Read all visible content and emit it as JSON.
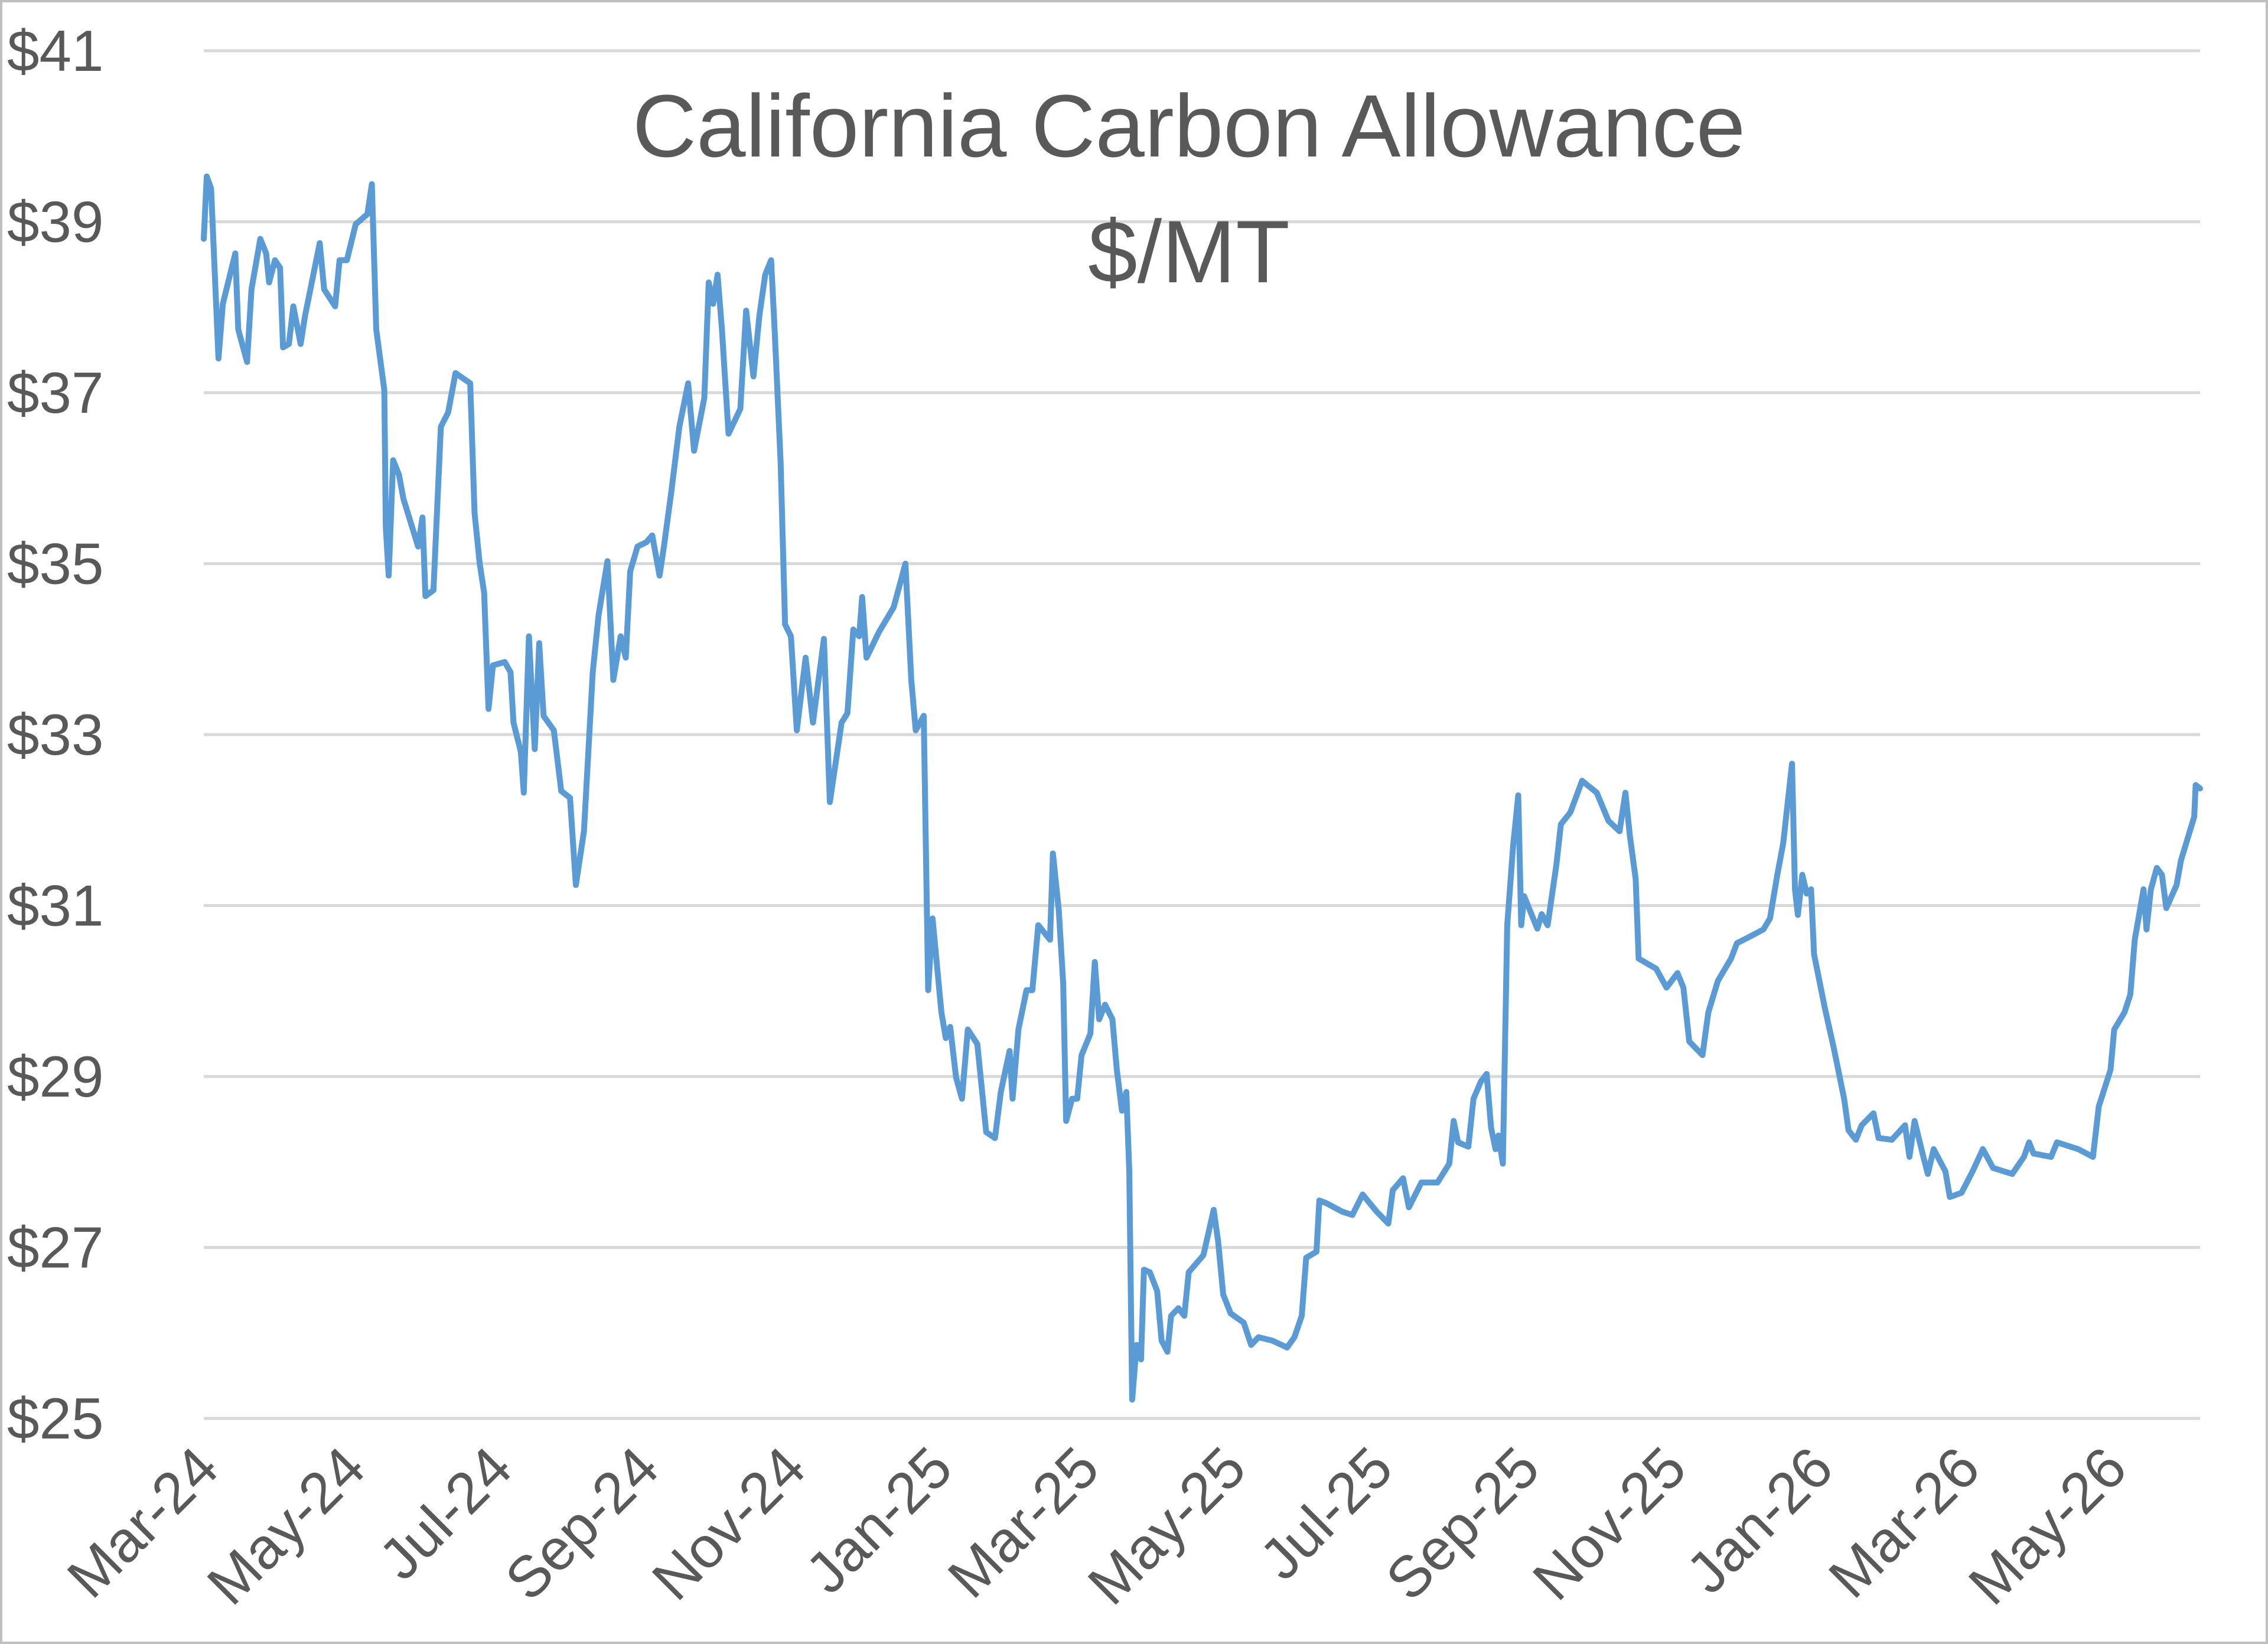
{
  "chart_data": {
    "type": "line",
    "title": "California Carbon Allowance",
    "subtitle": "$/MT",
    "color": "#5b9bd5",
    "grid": true,
    "x": [
      0,
      0.04,
      0.1,
      0.2,
      0.26,
      0.43,
      0.47,
      0.59,
      0.65,
      0.77,
      0.85,
      0.89,
      0.97,
      1.04,
      1.08,
      1.16,
      1.22,
      1.32,
      1.38,
      1.58,
      1.64,
      1.79,
      1.85,
      1.95,
      2.07,
      2.23,
      2.29,
      2.35,
      2.46,
      2.48,
      2.52,
      2.58,
      2.66,
      2.72,
      2.92,
      2.98,
      3.02,
      3.13,
      3.23,
      3.33,
      3.43,
      3.63,
      3.69,
      3.76,
      3.82,
      3.88,
      3.94,
      4.1,
      4.18,
      4.22,
      4.32,
      4.36,
      4.43,
      4.51,
      4.57,
      4.63,
      4.77,
      4.87,
      4.99,
      5.07,
      5.18,
      5.3,
      5.38,
      5.5,
      5.58,
      5.68,
      5.75,
      5.81,
      5.91,
      6.03,
      6.11,
      6.21,
      6.27,
      6.37,
      6.48,
      6.6,
      6.68,
      6.82,
      6.88,
      6.94,
      7.0,
      7.06,
      7.15,
      7.31,
      7.39,
      7.49,
      7.57,
      7.65,
      7.73,
      7.78,
      7.86,
      7.92,
      8.0,
      8.08,
      8.2,
      8.3,
      8.45,
      8.53,
      8.69,
      8.77,
      8.85,
      8.93,
      8.97,
      9.03,
      9.2,
      9.4,
      9.56,
      9.64,
      9.7,
      9.81,
      9.87,
      9.93,
      10.05,
      10.11,
      10.17,
      10.25,
      10.33,
      10.41,
      10.54,
      10.66,
      10.78,
      10.86,
      10.98,
      11.02,
      11.1,
      11.21,
      11.29,
      11.37,
      11.53,
      11.57,
      11.65,
      11.71,
      11.75,
      11.83,
      11.9,
      11.96,
      12.08,
      12.14,
      12.2,
      12.28,
      12.38,
      12.44,
      12.51,
      12.57,
      12.61,
      12.65,
      12.71,
      12.77,
      12.81,
      12.89,
      12.99,
      13.05,
      13.13,
      13.18,
      13.28,
      13.36,
      13.42,
      13.62,
      13.76,
      13.82,
      13.89,
      13.99,
      14.17,
      14.27,
      14.37,
      14.56,
      14.76,
      14.86,
      14.96,
      15.02,
      15.16,
      15.2,
      15.29,
      15.51,
      15.65,
      15.79,
      15.98,
      16.14,
      16.2,
      16.34,
      16.42,
      16.59,
      16.81,
      16.97,
      17.03,
      17.09,
      17.23,
      17.3,
      17.4,
      17.48,
      17.54,
      17.6,
      17.64,
      17.7,
      17.76,
      17.84,
      17.91,
      17.95,
      17.99,
      18.17,
      18.23,
      18.31,
      18.43,
      18.49,
      18.62,
      18.78,
      18.98,
      19.14,
      19.29,
      19.37,
      19.43,
      19.51,
      19.55,
      19.79,
      19.93,
      20.08,
      20.16,
      20.24,
      20.42,
      20.5,
      20.63,
      20.81,
      20.89,
      21.05,
      21.25,
      21.34,
      21.44,
      21.52,
      21.64,
      21.68,
      21.72,
      21.78,
      21.84,
      21.9,
      21.94,
      22.09,
      22.21,
      22.35,
      22.41,
      22.51,
      22.59,
      22.75,
      22.82,
      23.0,
      23.18,
      23.24,
      23.31,
      23.43,
      23.49,
      23.57,
      23.73,
      23.79,
      23.95,
      24.1,
      24.24,
      24.38,
      24.64,
      24.8,
      24.87,
      24.93,
      25.17,
      25.25,
      25.54,
      25.74,
      25.82,
      25.98,
      26.03,
      26.17,
      26.25,
      26.31,
      26.43,
      26.47,
      26.53,
      26.61,
      26.68,
      26.74,
      26.88,
      26.94,
      27.12,
      27.14,
      27.2
    ],
    "values": [
      38.8,
      39.53,
      39.39,
      37.4,
      38.04,
      38.63,
      37.74,
      37.36,
      38.21,
      38.8,
      38.63,
      38.29,
      38.55,
      38.46,
      37.53,
      37.57,
      38.01,
      37.57,
      37.9,
      38.75,
      38.21,
      38.01,
      38.55,
      38.55,
      38.97,
      39.09,
      39.44,
      37.74,
      37.03,
      35.42,
      34.86,
      36.21,
      36.04,
      35.76,
      35.2,
      35.54,
      34.62,
      34.69,
      36.6,
      36.77,
      37.23,
      37.11,
      35.59,
      35.0,
      34.66,
      33.3,
      33.81,
      33.85,
      33.73,
      33.14,
      32.8,
      32.32,
      34.15,
      32.83,
      34.07,
      33.22,
      33.05,
      32.34,
      32.26,
      31.24,
      31.87,
      33.73,
      34.4,
      35.03,
      33.64,
      34.15,
      33.9,
      34.91,
      35.2,
      35.25,
      35.33,
      34.86,
      35.2,
      35.84,
      36.6,
      37.11,
      36.32,
      36.94,
      38.29,
      38.04,
      38.38,
      37.74,
      36.52,
      36.81,
      37.96,
      37.19,
      37.9,
      38.38,
      38.55,
      37.7,
      36.18,
      34.29,
      34.15,
      33.05,
      33.9,
      33.14,
      34.12,
      32.21,
      33.14,
      33.25,
      34.23,
      34.15,
      34.61,
      33.9,
      34.2,
      34.49,
      35.0,
      33.64,
      33.05,
      33.22,
      30.01,
      30.85,
      29.75,
      29.45,
      29.58,
      28.99,
      28.74,
      29.55,
      29.38,
      28.35,
      28.28,
      28.82,
      29.3,
      28.74,
      29.55,
      30.01,
      30.01,
      30.77,
      30.6,
      31.61,
      30.94,
      30.09,
      28.48,
      28.74,
      28.74,
      29.25,
      29.5,
      30.34,
      29.67,
      29.84,
      29.67,
      29.08,
      28.6,
      28.82,
      27.89,
      25.22,
      25.86,
      25.69,
      26.74,
      26.71,
      26.49,
      25.91,
      25.78,
      26.2,
      26.29,
      26.2,
      26.71,
      26.91,
      27.44,
      27.08,
      26.45,
      26.23,
      26.12,
      25.86,
      25.95,
      25.91,
      25.83,
      25.95,
      26.2,
      26.88,
      26.95,
      27.55,
      27.52,
      27.42,
      27.38,
      27.62,
      27.42,
      27.28,
      27.67,
      27.81,
      27.47,
      27.76,
      27.76,
      27.98,
      28.48,
      28.23,
      28.18,
      28.74,
      28.94,
      29.03,
      28.4,
      28.15,
      28.31,
      27.98,
      30.77,
      31.7,
      32.29,
      30.77,
      31.11,
      30.73,
      30.9,
      30.77,
      31.48,
      31.95,
      32.09,
      32.46,
      32.32,
      31.99,
      31.87,
      32.32,
      31.82,
      31.31,
      30.38,
      30.26,
      30.04,
      30.21,
      30.04,
      29.41,
      29.25,
      29.75,
      30.12,
      30.38,
      30.56,
      30.63,
      30.72,
      30.85,
      31.36,
      31.73,
      32.66,
      31.19,
      30.89,
      31.36,
      31.14,
      31.19,
      30.43,
      29.79,
      29.33,
      28.74,
      28.37,
      28.26,
      28.43,
      28.57,
      28.28,
      28.26,
      28.43,
      28.06,
      28.48,
      28.06,
      27.86,
      28.15,
      27.89,
      27.59,
      27.64,
      27.89,
      28.15,
      27.93,
      27.86,
      28.06,
      28.23,
      28.1,
      28.06,
      28.23,
      28.15,
      28.06,
      28.65,
      29.08,
      29.55,
      29.75,
      29.96,
      30.6,
      31.19,
      30.72,
      31.19,
      31.44,
      31.36,
      30.97,
      31.24,
      31.53,
      32.04,
      32.41,
      32.37
    ],
    "xlim": [
      0,
      27.2
    ],
    "xticks": [
      {
        "value": 0,
        "label": "Mar-24"
      },
      {
        "value": 2,
        "label": "May-24"
      },
      {
        "value": 4,
        "label": "Jul-24"
      },
      {
        "value": 6,
        "label": "Sep-24"
      },
      {
        "value": 8,
        "label": "Nov-24"
      },
      {
        "value": 10,
        "label": "Jan-25"
      },
      {
        "value": 12,
        "label": "Mar-25"
      },
      {
        "value": 14,
        "label": "May-25"
      },
      {
        "value": 16,
        "label": "Jul-25"
      },
      {
        "value": 18,
        "label": "Sep-25"
      },
      {
        "value": 20,
        "label": "Nov-25"
      },
      {
        "value": 22,
        "label": "Jan-26"
      },
      {
        "value": 24,
        "label": "Mar-26"
      },
      {
        "value": 26,
        "label": "May-26"
      }
    ],
    "ylim": [
      25,
      41
    ],
    "yticks": [
      {
        "value": 25,
        "label": "$25"
      },
      {
        "value": 27,
        "label": "$27"
      },
      {
        "value": 29,
        "label": "$29"
      },
      {
        "value": 31,
        "label": "$31"
      },
      {
        "value": 33,
        "label": "$33"
      },
      {
        "value": 35,
        "label": "$35"
      },
      {
        "value": 37,
        "label": "$37"
      },
      {
        "value": 39,
        "label": "$39"
      },
      {
        "value": 41,
        "label": "$41"
      }
    ]
  }
}
